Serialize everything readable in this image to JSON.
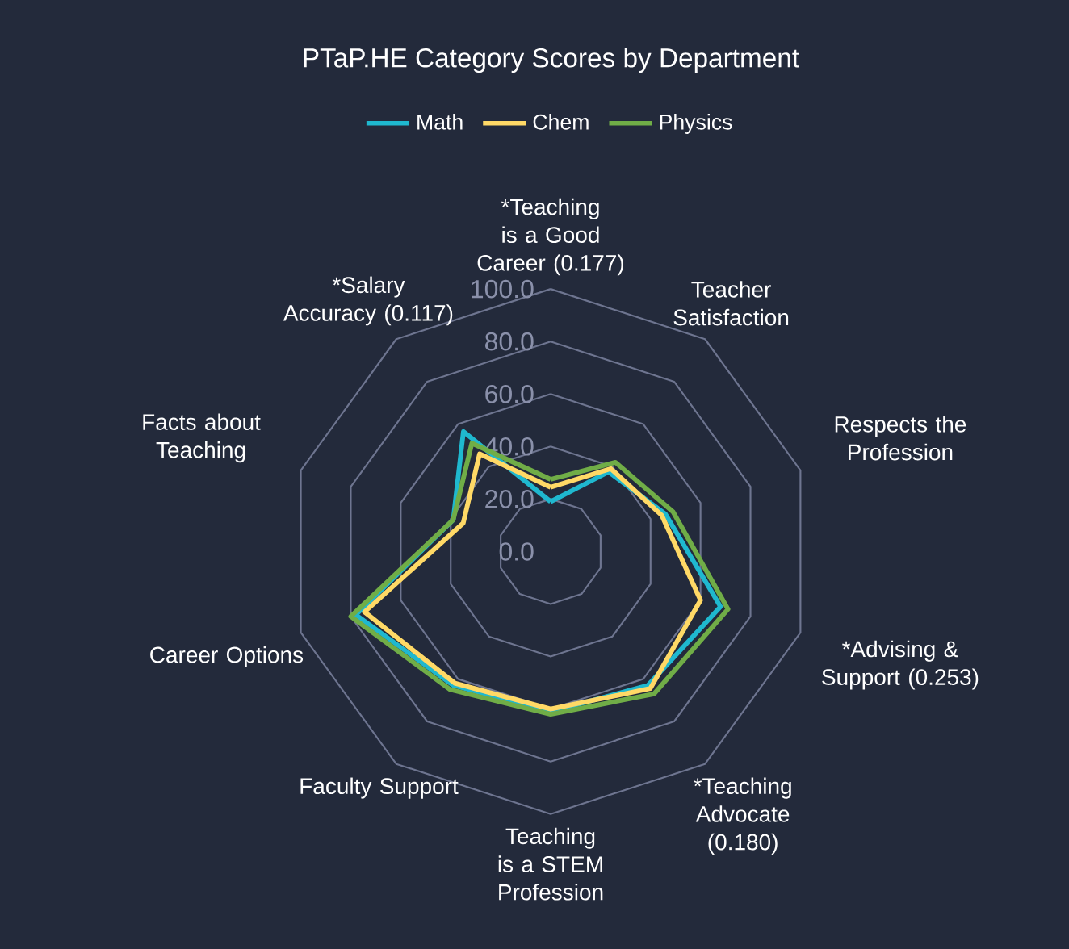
{
  "chart_data": {
    "type": "radar",
    "title": "PTaP.HE Category Scores by Department",
    "categories": [
      "*Teaching is a Good Career (0.177)",
      "Teacher Satisfaction",
      "Respects the Profession",
      "*Advising & Support (0.253)",
      "*Teaching Advocate (0.180)",
      "Teaching is a STEM Profession",
      "Faculty Support",
      "Career Options",
      "Facts about Teaching",
      "*Salary Accuracy (0.117)"
    ],
    "series": [
      {
        "name": "Math",
        "color": "#1fb8cf",
        "values": [
          19,
          37.5,
          46,
          68,
          63,
          61,
          63,
          78,
          39,
          56.5
        ]
      },
      {
        "name": "Chem",
        "color": "#ffd966",
        "values": [
          24.5,
          39,
          44.5,
          60,
          64.5,
          60,
          62,
          74.5,
          35,
          46
        ]
      },
      {
        "name": "Physics",
        "color": "#70ad47",
        "values": [
          27.5,
          42,
          49,
          71,
          67,
          62,
          65,
          80,
          39,
          51
        ]
      }
    ],
    "ylim": [
      0,
      100
    ],
    "yticks": [
      {
        "value": 0,
        "label": "0.0"
      },
      {
        "value": 20,
        "label": "20.0"
      },
      {
        "value": 40,
        "label": "40.0"
      },
      {
        "value": 60,
        "label": "60.0"
      },
      {
        "value": 80,
        "label": "80.0"
      },
      {
        "value": 100,
        "label": "100.0"
      }
    ],
    "grid": true,
    "legend": "top"
  }
}
